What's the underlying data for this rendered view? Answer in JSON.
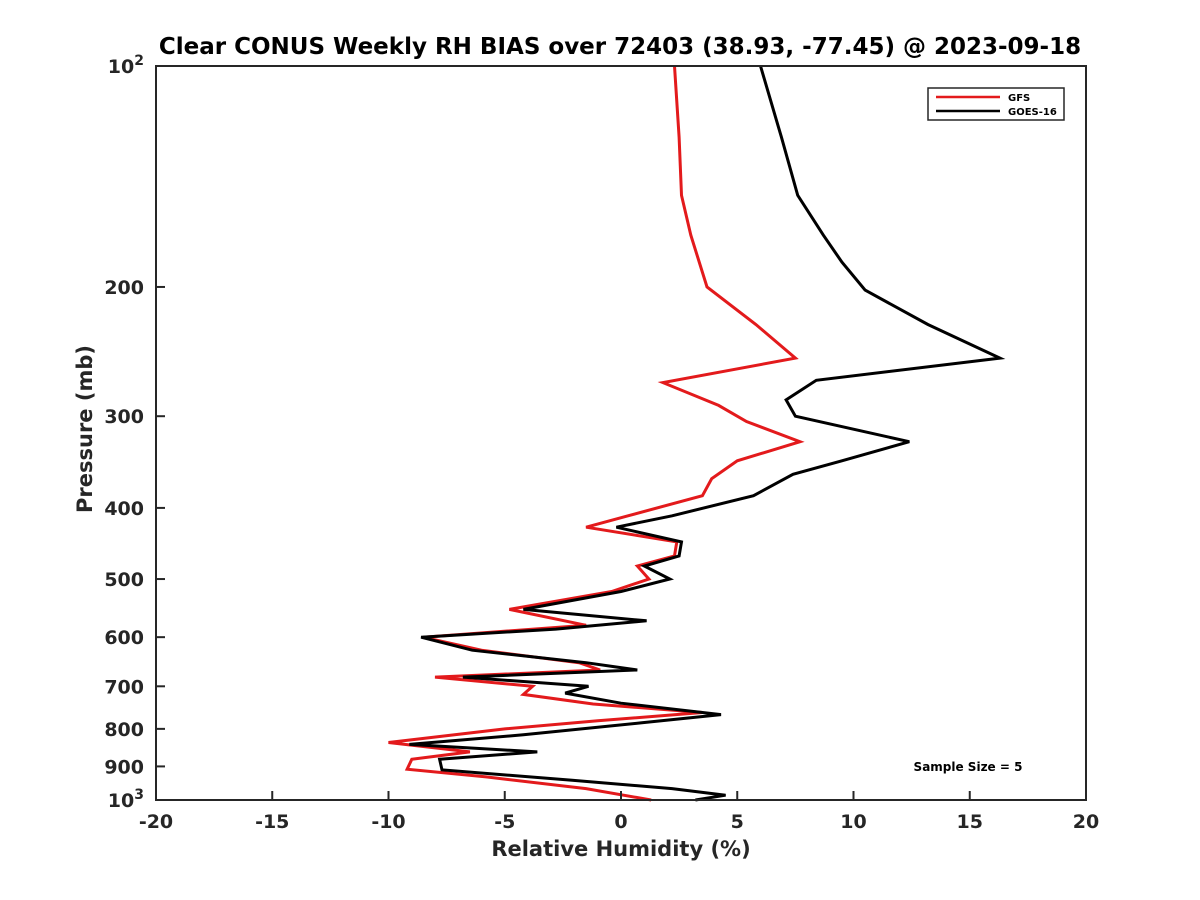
{
  "chart_data": {
    "type": "line",
    "title": "Clear CONUS Weekly RH BIAS over 72403 (38.93, -77.45) @ 2023-09-18",
    "xlabel": "Relative Humidity (%)",
    "ylabel": "Pressure (mb)",
    "xlim": [
      -20,
      20
    ],
    "ylim": [
      100,
      1000
    ],
    "y_scale": "log",
    "y_reversed": true,
    "grid": false,
    "legend_position": "top-right",
    "x_ticks": [
      -20,
      -15,
      -10,
      -5,
      0,
      5,
      10,
      15,
      20
    ],
    "x_tick_labels": [
      "-20",
      "-15",
      "-10",
      "-5",
      "0",
      "5",
      "10",
      "15",
      "20"
    ],
    "y_ticks": [
      100,
      200,
      300,
      400,
      500,
      600,
      700,
      800,
      900,
      1000
    ],
    "y_tick_labels": [
      {
        "base": "10",
        "exp": "2"
      },
      {
        "base": "200",
        "exp": ""
      },
      {
        "base": "300",
        "exp": ""
      },
      {
        "base": "400",
        "exp": ""
      },
      {
        "base": "500",
        "exp": ""
      },
      {
        "base": "600",
        "exp": ""
      },
      {
        "base": "700",
        "exp": ""
      },
      {
        "base": "800",
        "exp": ""
      },
      {
        "base": "900",
        "exp": ""
      },
      {
        "base": "10",
        "exp": "3"
      }
    ],
    "annotation": "Sample Size = 5",
    "series": [
      {
        "name": "GFS",
        "color": "#e31a1c",
        "points": [
          {
            "x": 2.3,
            "y": 100
          },
          {
            "x": 2.5,
            "y": 125
          },
          {
            "x": 2.6,
            "y": 150
          },
          {
            "x": 3.0,
            "y": 170
          },
          {
            "x": 3.7,
            "y": 200
          },
          {
            "x": 5.8,
            "y": 225
          },
          {
            "x": 7.5,
            "y": 250
          },
          {
            "x": 1.8,
            "y": 270
          },
          {
            "x": 4.2,
            "y": 290
          },
          {
            "x": 5.4,
            "y": 305
          },
          {
            "x": 7.7,
            "y": 325
          },
          {
            "x": 5.0,
            "y": 345
          },
          {
            "x": 3.9,
            "y": 365
          },
          {
            "x": 3.5,
            "y": 385
          },
          {
            "x": 0.3,
            "y": 410
          },
          {
            "x": -1.5,
            "y": 425
          },
          {
            "x": 2.4,
            "y": 445
          },
          {
            "x": 2.3,
            "y": 465
          },
          {
            "x": 0.7,
            "y": 480
          },
          {
            "x": 1.2,
            "y": 500
          },
          {
            "x": -0.4,
            "y": 520
          },
          {
            "x": -4.8,
            "y": 550
          },
          {
            "x": -1.5,
            "y": 578
          },
          {
            "x": -8.5,
            "y": 600
          },
          {
            "x": -6.0,
            "y": 625
          },
          {
            "x": -1.8,
            "y": 650
          },
          {
            "x": -0.9,
            "y": 665
          },
          {
            "x": -8.0,
            "y": 680
          },
          {
            "x": -3.8,
            "y": 700
          },
          {
            "x": -4.2,
            "y": 718
          },
          {
            "x": -1.2,
            "y": 740
          },
          {
            "x": 3.5,
            "y": 760
          },
          {
            "x": -1.0,
            "y": 780
          },
          {
            "x": -5.0,
            "y": 800
          },
          {
            "x": -10.0,
            "y": 835
          },
          {
            "x": -6.5,
            "y": 860
          },
          {
            "x": -9.0,
            "y": 880
          },
          {
            "x": -9.2,
            "y": 908
          },
          {
            "x": -5.8,
            "y": 930
          },
          {
            "x": -1.5,
            "y": 965
          },
          {
            "x": 1.3,
            "y": 1000
          }
        ]
      },
      {
        "name": "GOES-16",
        "color": "#000000",
        "points": [
          {
            "x": 6.0,
            "y": 100
          },
          {
            "x": 6.9,
            "y": 125
          },
          {
            "x": 7.6,
            "y": 150
          },
          {
            "x": 8.7,
            "y": 170
          },
          {
            "x": 9.5,
            "y": 185
          },
          {
            "x": 10.5,
            "y": 202
          },
          {
            "x": 13.2,
            "y": 225
          },
          {
            "x": 16.3,
            "y": 250
          },
          {
            "x": 8.4,
            "y": 268
          },
          {
            "x": 7.1,
            "y": 285
          },
          {
            "x": 7.5,
            "y": 300
          },
          {
            "x": 12.4,
            "y": 325
          },
          {
            "x": 9.5,
            "y": 345
          },
          {
            "x": 7.4,
            "y": 360
          },
          {
            "x": 5.7,
            "y": 385
          },
          {
            "x": 2.2,
            "y": 410
          },
          {
            "x": -0.2,
            "y": 425
          },
          {
            "x": 2.6,
            "y": 445
          },
          {
            "x": 2.5,
            "y": 465
          },
          {
            "x": 1.0,
            "y": 480
          },
          {
            "x": 2.1,
            "y": 500
          },
          {
            "x": 0.0,
            "y": 520
          },
          {
            "x": -4.2,
            "y": 550
          },
          {
            "x": 1.1,
            "y": 570
          },
          {
            "x": -2.8,
            "y": 585
          },
          {
            "x": -8.6,
            "y": 600
          },
          {
            "x": -6.4,
            "y": 625
          },
          {
            "x": -1.5,
            "y": 650
          },
          {
            "x": 0.7,
            "y": 665
          },
          {
            "x": -6.8,
            "y": 680
          },
          {
            "x": -1.4,
            "y": 700
          },
          {
            "x": -2.4,
            "y": 715
          },
          {
            "x": 0.0,
            "y": 738
          },
          {
            "x": 4.3,
            "y": 765
          },
          {
            "x": 0.9,
            "y": 785
          },
          {
            "x": -4.2,
            "y": 815
          },
          {
            "x": -9.1,
            "y": 840
          },
          {
            "x": -3.6,
            "y": 860
          },
          {
            "x": -7.8,
            "y": 880
          },
          {
            "x": -7.7,
            "y": 910
          },
          {
            "x": -2.1,
            "y": 940
          },
          {
            "x": 2.2,
            "y": 965
          },
          {
            "x": 4.5,
            "y": 985
          },
          {
            "x": 3.2,
            "y": 1000
          }
        ]
      }
    ]
  }
}
